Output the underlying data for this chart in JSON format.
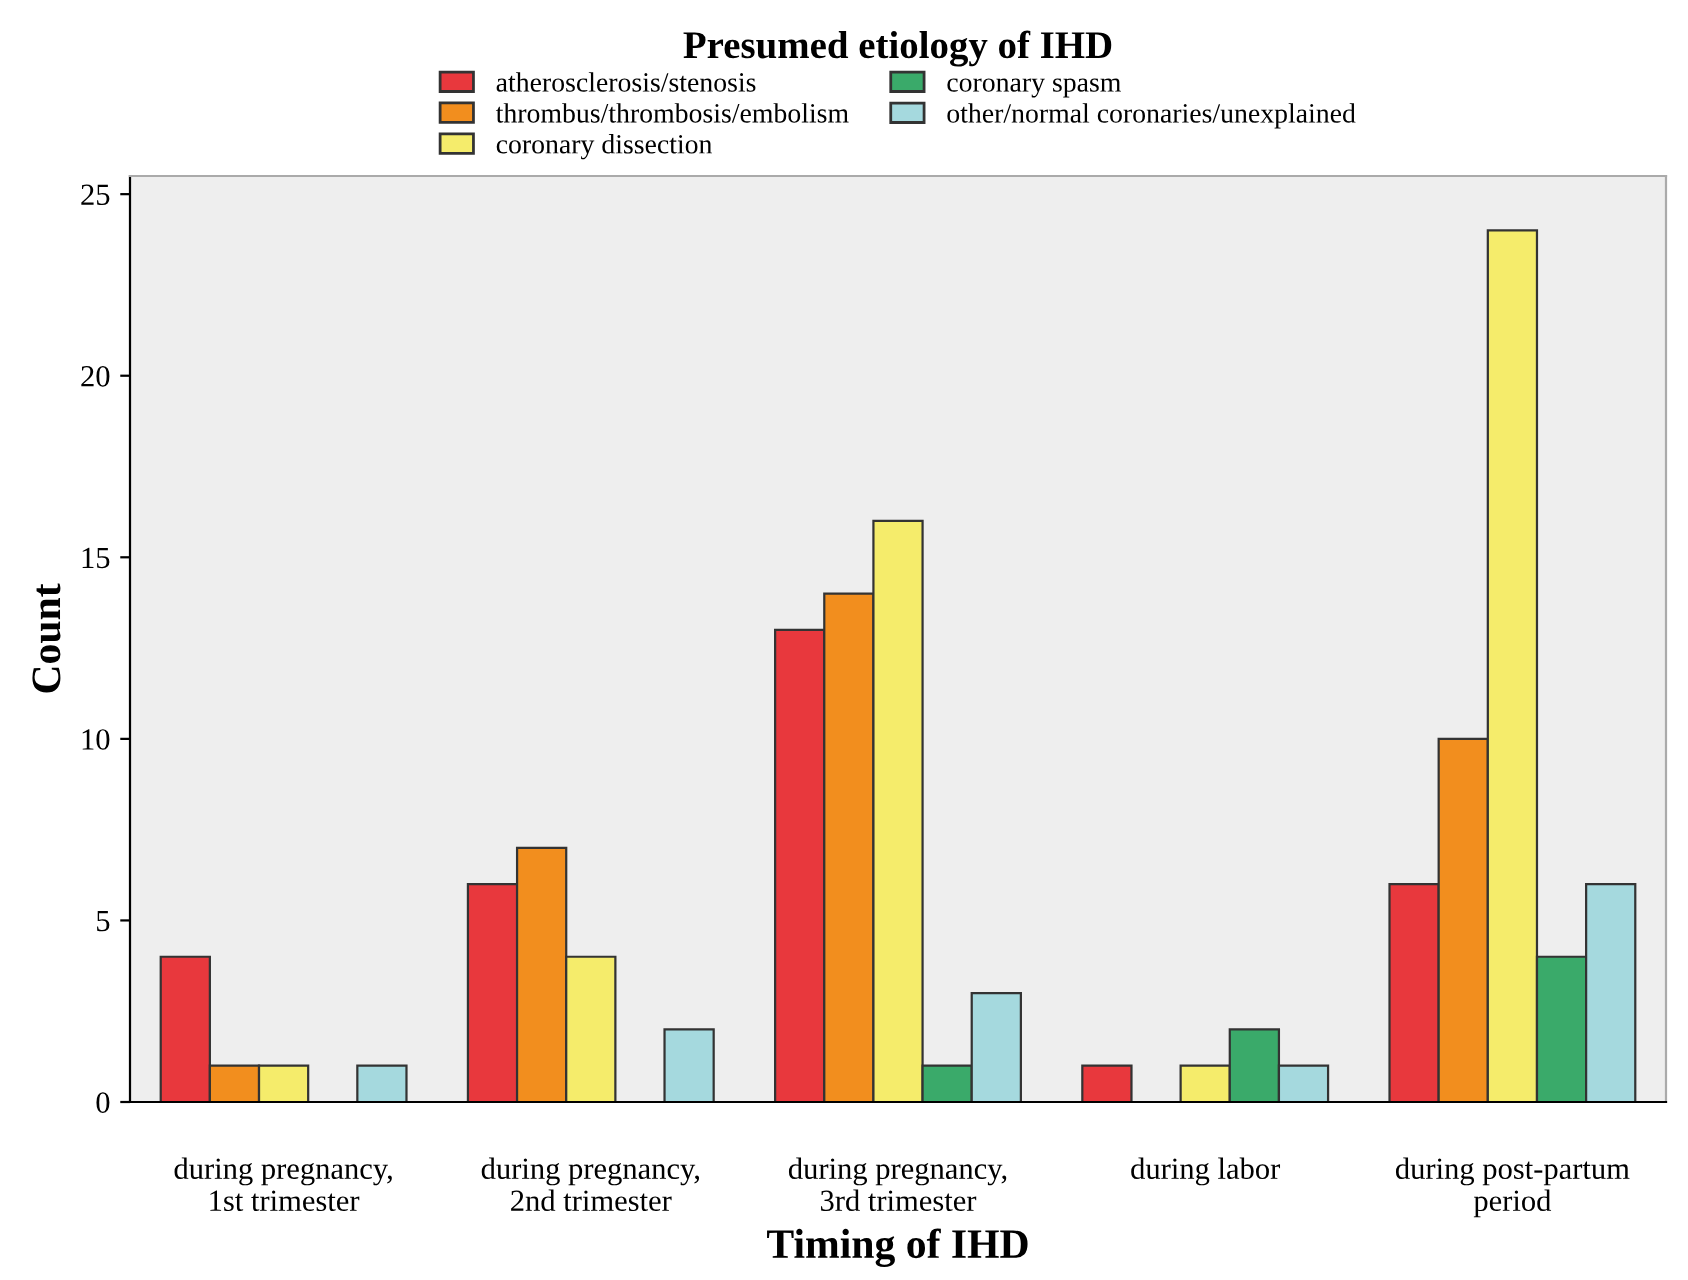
{
  "chart_data": {
    "type": "bar",
    "xlabel": "Timing of IHD",
    "ylabel": "Count",
    "legend_title": "Presumed etiology of IHD",
    "categories": [
      "during pregnancy,\n1st trimester",
      "during pregnancy,\n2nd trimester",
      "during pregnancy,\n3rd trimester",
      "during labor",
      "during post-partum\nperiod"
    ],
    "series": [
      {
        "name": "atherosclerosis/stenosis",
        "color": "#e8383d",
        "values": [
          4,
          6,
          13,
          1,
          6
        ]
      },
      {
        "name": "thrombus/thrombosis/embolism",
        "color": "#f28e1e",
        "values": [
          1,
          7,
          14,
          null,
          10
        ]
      },
      {
        "name": "coronary dissection",
        "color": "#f5ec6b",
        "values": [
          1,
          4,
          16,
          1,
          24
        ]
      },
      {
        "name": "coronary spasm",
        "color": "#3aaa6a",
        "values": [
          null,
          null,
          1,
          2,
          4
        ]
      },
      {
        "name": "other/normal coronaries/unexplained",
        "color": "#a5d9de",
        "values": [
          1,
          2,
          3,
          1,
          6
        ]
      }
    ],
    "ylim": [
      0,
      25.5
    ],
    "yticks": [
      0,
      5,
      10,
      15,
      20,
      25
    ],
    "grid": false,
    "legend": "top"
  }
}
